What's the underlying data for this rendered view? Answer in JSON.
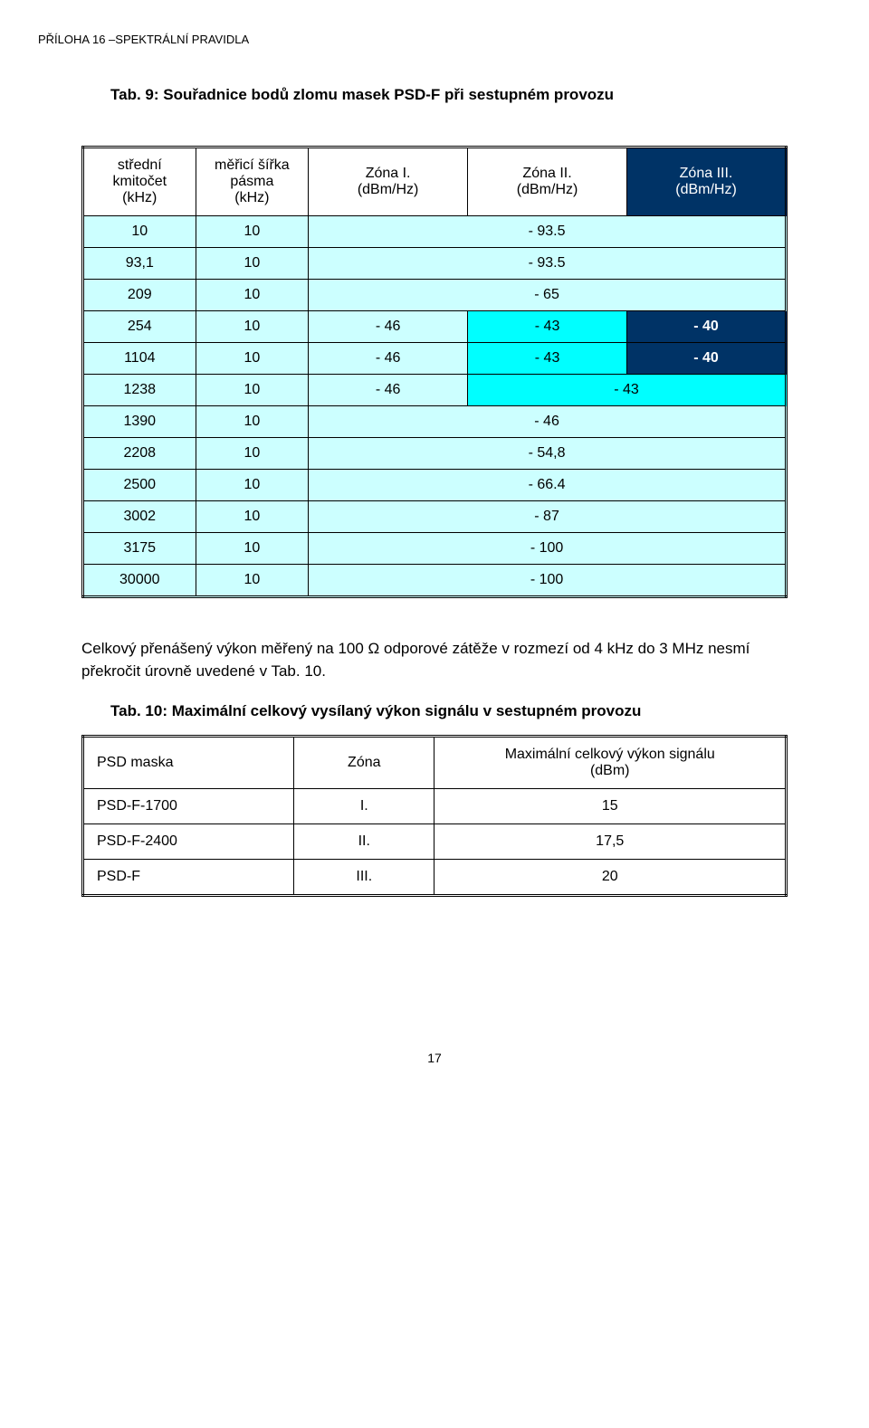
{
  "header_note": "PŘÍLOHA 16 –SPEKTRÁLNÍ PRAVIDLA",
  "tab9_title": "Tab. 9: Souřadnice bodů zlomu masek PSD-F při sestupném provozu",
  "t9": {
    "h_khz_l1": "střední",
    "h_khz_l2": "kmitočet",
    "h_khz_l3": "(kHz)",
    "h_sirka_l1": "měřicí šířka",
    "h_sirka_l2": "pásma",
    "h_sirka_l3": "(kHz)",
    "h_z1_l1": "Zóna I.",
    "h_z1_l2": "(dBm/Hz)",
    "h_z2_l1": "Zóna II.",
    "h_z2_l2": "(dBm/Hz)",
    "h_z3_l1": "Zóna III.",
    "h_z3_l2": "(dBm/Hz)",
    "rows": [
      {
        "khz": "10",
        "sir": "10",
        "v": "- 93.5",
        "span": 3
      },
      {
        "khz": "93,1",
        "sir": "10",
        "v": "- 93.5",
        "span": 3
      },
      {
        "khz": "209",
        "sir": "10",
        "v": "- 65",
        "span": 3
      },
      {
        "khz": "254",
        "sir": "10",
        "z1": "- 46",
        "z2": "- 43",
        "z3": "- 40"
      },
      {
        "khz": "1104",
        "sir": "10",
        "z1": "- 46",
        "z2": "- 43",
        "z3": "- 40"
      },
      {
        "khz": "1238",
        "sir": "10",
        "z1": "- 46",
        "z23": "- 43"
      },
      {
        "khz": "1390",
        "sir": "10",
        "v": "- 46",
        "span": 3
      },
      {
        "khz": "2208",
        "sir": "10",
        "v": "- 54,8",
        "span": 3
      },
      {
        "khz": "2500",
        "sir": "10",
        "v": "- 66.4",
        "span": 3
      },
      {
        "khz": "3002",
        "sir": "10",
        "v": "- 87",
        "span": 3
      },
      {
        "khz": "3175",
        "sir": "10",
        "v": "- 100",
        "span": 3
      },
      {
        "khz": "30000",
        "sir": "10",
        "v": "- 100",
        "span": 3
      }
    ]
  },
  "para_text": "Celkový přenášený výkon měřený na 100 Ω odporové zátěže v rozmezí od 4 kHz do 3 MHz nesmí překročit úrovně uvedené v Tab. 10.",
  "tab10_title": "Tab. 10: Maximální celkový vysílaný výkon signálu v sestupném provozu",
  "t10": {
    "h_pm": "PSD maska",
    "h_zn": "Zóna",
    "h_mv_l1": "Maximální celkový výkon signálu",
    "h_mv_l2": "(dBm)",
    "rows": [
      {
        "pm": "PSD-F-1700",
        "zn": "I.",
        "mv": "15"
      },
      {
        "pm": "PSD-F-2400",
        "zn": "II.",
        "mv": "17,5"
      },
      {
        "pm": "PSD-F",
        "zn": "III.",
        "mv": "20"
      }
    ]
  },
  "page_number": "17"
}
